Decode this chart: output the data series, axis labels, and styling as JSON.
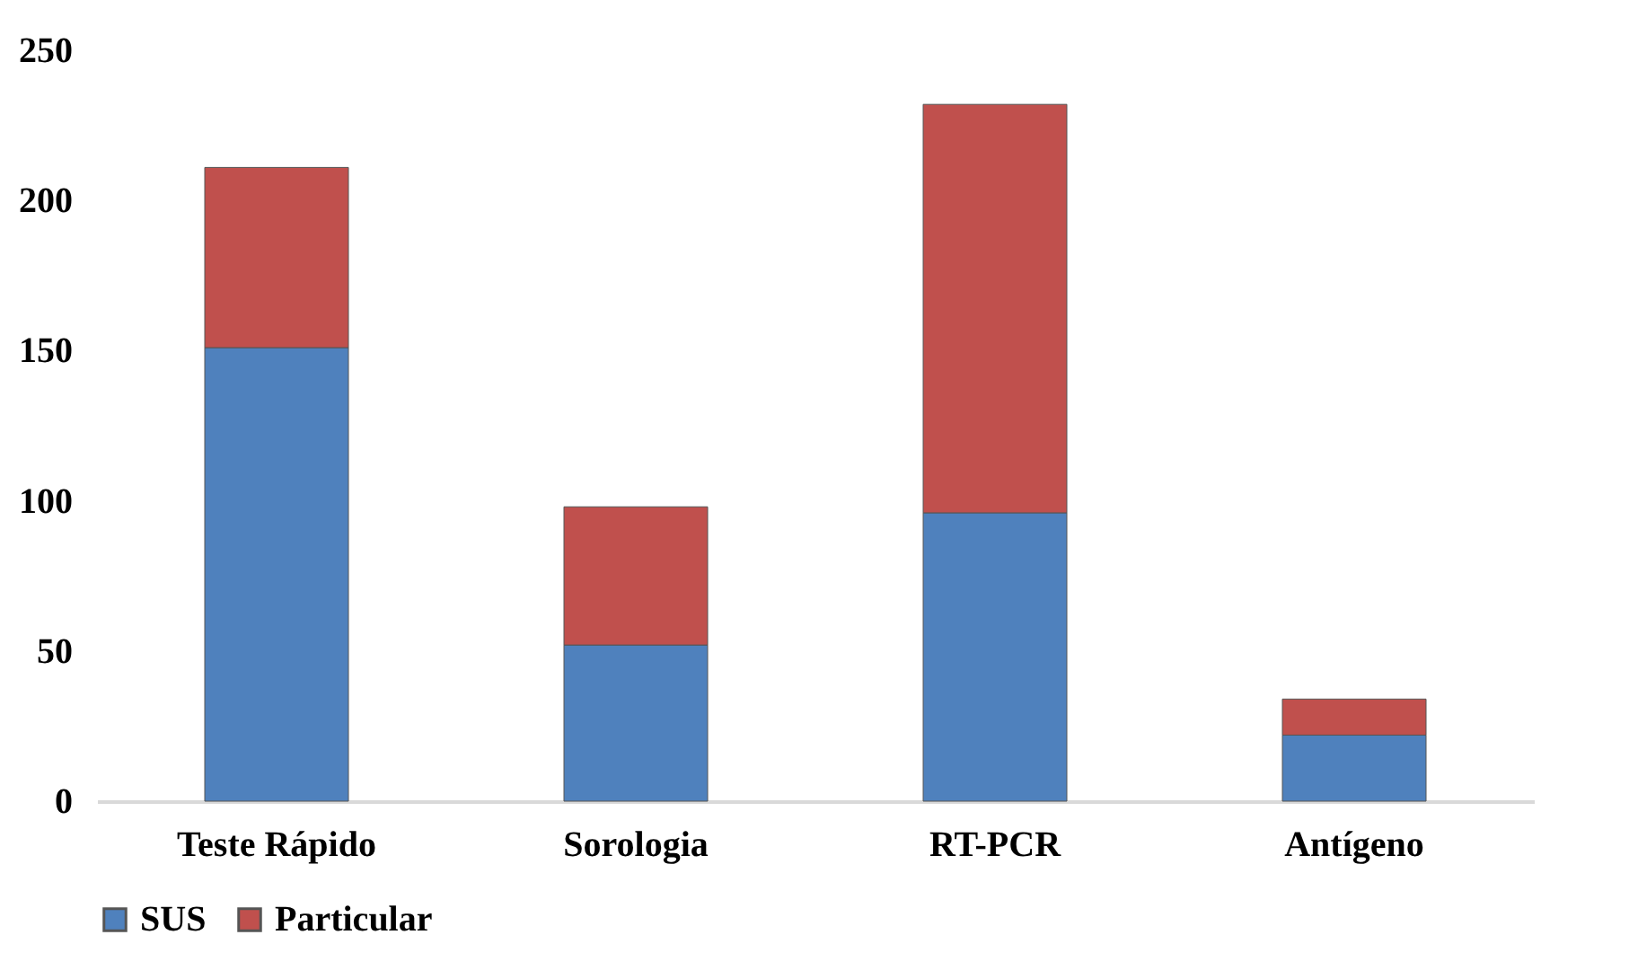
{
  "chart_data": {
    "type": "bar",
    "stacked": true,
    "categories": [
      "Teste Rápido",
      "Sorologia",
      "RT-PCR",
      "Antígeno"
    ],
    "series": [
      {
        "name": "SUS",
        "color": "#4f81bd",
        "values": [
          151,
          52,
          96,
          22
        ]
      },
      {
        "name": "Particular",
        "color": "#c0504d",
        "values": [
          60,
          46,
          136,
          12
        ]
      }
    ],
    "ylim": [
      0,
      250
    ],
    "yticks": [
      0,
      50,
      100,
      150,
      200,
      250
    ],
    "grid": false,
    "legend": "bottom"
  }
}
